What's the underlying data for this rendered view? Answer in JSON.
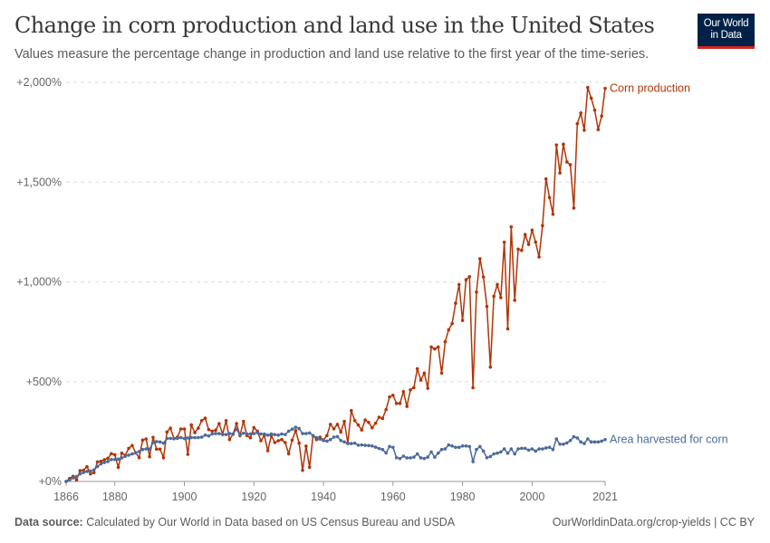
{
  "header": {
    "title": "Change in corn production and land use in the United States",
    "subtitle": "Values measure the percentage change in production and land use relative to the first year of the time-series.",
    "logo": "Our World in Data"
  },
  "footer": {
    "source_label": "Data source:",
    "source_text": "Calculated by Our World in Data based on US Census Bureau and USDA",
    "url_license": "OurWorldinData.org/crop-yields | CC BY"
  },
  "colors": {
    "corn": "#b13507",
    "area": "#4c6a9c",
    "grid": "#dddddd",
    "axis": "#999999"
  },
  "chart_data": {
    "type": "line",
    "title": "Change in corn production and land use in the United States",
    "xlim": [
      1866,
      2021
    ],
    "ylim": [
      0,
      2000
    ],
    "y_ticks": [
      {
        "v": 0,
        "label": "+0%"
      },
      {
        "v": 500,
        "label": "+500%"
      },
      {
        "v": 1000,
        "label": "+1,000%"
      },
      {
        "v": 1500,
        "label": "+1,500%"
      },
      {
        "v": 2000,
        "label": "+2,000%"
      }
    ],
    "x_ticks": [
      {
        "v": 1866,
        "label": "1866"
      },
      {
        "v": 1880,
        "label": "1880"
      },
      {
        "v": 1900,
        "label": "1900"
      },
      {
        "v": 1920,
        "label": "1920"
      },
      {
        "v": 1940,
        "label": "1940"
      },
      {
        "v": 1960,
        "label": "1960"
      },
      {
        "v": 1980,
        "label": "1980"
      },
      {
        "v": 2000,
        "label": "2000"
      },
      {
        "v": 2021,
        "label": "2021"
      }
    ],
    "grid": "horizontal dashed",
    "legend": "inline labels at line ends (right)",
    "x_start": 1866,
    "series": [
      {
        "name": "Corn production",
        "color": "#b13507",
        "values": [
          0,
          15,
          26,
          8,
          54,
          56,
          74,
          38,
          44,
          98,
          101,
          109,
          116,
          139,
          134,
          71,
          142,
          131,
          166,
          180,
          144,
          119,
          207,
          213,
          124,
          221,
          162,
          162,
          119,
          248,
          267,
          215,
          222,
          263,
          263,
          136,
          283,
          245,
          267,
          305,
          317,
          260,
          252,
          257,
          290,
          237,
          305,
          210,
          237,
          290,
          230,
          301,
          230,
          219,
          270,
          252,
          204,
          230,
          154,
          230,
          195,
          204,
          210,
          195,
          139,
          207,
          255,
          192,
          56,
          177,
          71,
          230,
          210,
          222,
          207,
          230,
          286,
          264,
          286,
          248,
          301,
          192,
          355,
          305,
          283,
          258,
          308,
          296,
          269,
          292,
          322,
          316,
          360,
          423,
          432,
          391,
          391,
          450,
          376,
          459,
          470,
          565,
          508,
          543,
          467,
          674,
          664,
          674,
          543,
          700,
          760,
          791,
          893,
          987,
          807,
          1011,
          1026,
          470,
          949,
          1116,
          1025,
          877,
          573,
          928,
          987,
          921,
          1199,
          765,
          1276,
          908,
          1164,
          1158,
          1237,
          1188,
          1259,
          1200,
          1125,
          1282,
          1516,
          1423,
          1339,
          1686,
          1546,
          1690,
          1601,
          1587,
          1370,
          1793,
          1846,
          1760,
          1974,
          1921,
          1861,
          1763,
          1831,
          1970
        ]
      },
      {
        "name": "Area harvested for corn",
        "color": "#4c6a9c",
        "values": [
          0,
          8,
          18,
          25,
          38,
          45,
          50,
          52,
          58,
          75,
          88,
          95,
          100,
          110,
          110,
          112,
          118,
          126,
          132,
          138,
          143,
          150,
          160,
          163,
          162,
          195,
          200,
          198,
          192,
          215,
          216,
          214,
          216,
          220,
          215,
          218,
          220,
          220,
          220,
          222,
          232,
          228,
          238,
          240,
          240,
          235,
          235,
          240,
          238,
          262,
          232,
          242,
          238,
          238,
          240,
          245,
          238,
          238,
          232,
          238,
          235,
          232,
          238,
          235,
          252,
          262,
          272,
          265,
          240,
          240,
          243,
          230,
          220,
          212,
          205,
          202,
          210,
          222,
          225,
          205,
          198,
          190,
          190,
          192,
          182,
          183,
          181,
          180,
          178,
          172,
          165,
          160,
          143,
          175,
          171,
          119,
          115,
          127,
          118,
          118,
          122,
          138,
          118,
          115,
          122,
          148,
          122,
          142,
          160,
          163,
          183,
          178,
          171,
          171,
          178,
          178,
          175,
          100,
          160,
          175,
          152,
          119,
          125,
          138,
          142,
          148,
          163,
          142,
          163,
          138,
          163,
          166,
          166,
          157,
          163,
          152,
          163,
          163,
          168,
          171,
          160,
          213,
          187,
          187,
          193,
          205,
          224,
          218,
          198,
          190,
          213,
          198,
          198,
          198,
          202,
          210
        ]
      }
    ]
  }
}
